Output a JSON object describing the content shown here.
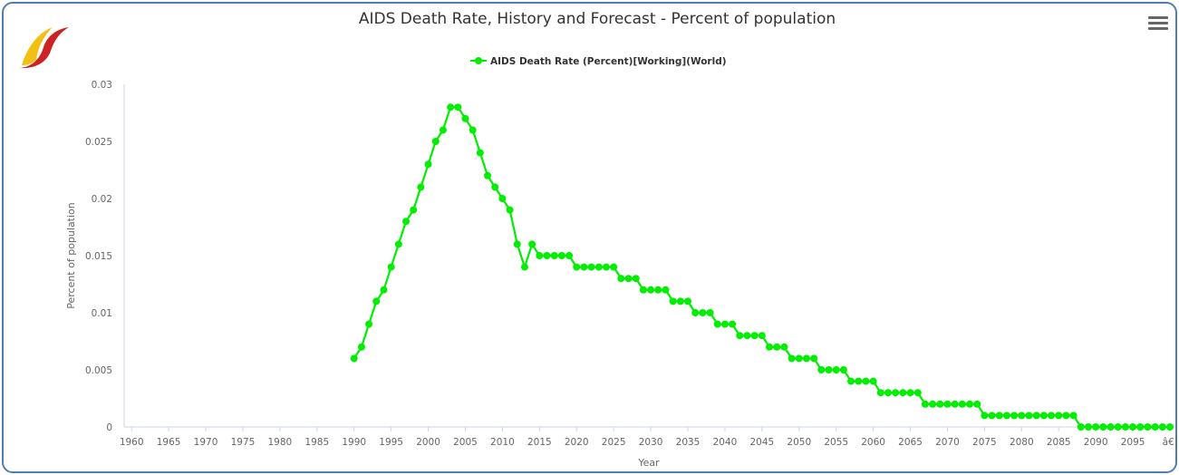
{
  "colors": {
    "series": "#00ee00",
    "frame": "#4f7db3",
    "text": "#333333",
    "axis": "#ccd6eb",
    "logo_red": "#cc2222",
    "logo_yellow": "#f2c012"
  },
  "icons": {
    "logo": "logo-icon",
    "menu": "hamburger-menu-icon"
  },
  "chart_data": {
    "type": "line",
    "title": "AIDS Death Rate, History and Forecast - Percent of population",
    "xlabel": "Year",
    "ylabel": "Percent of population",
    "xlim": [
      1959,
      2100
    ],
    "ylim": [
      0,
      0.03
    ],
    "grid": false,
    "legend": "top-center",
    "x_tick_labels": [
      "1960",
      "1965",
      "1970",
      "1975",
      "1980",
      "1985",
      "1990",
      "1995",
      "2000",
      "2005",
      "2010",
      "2015",
      "2020",
      "2025",
      "2030",
      "2035",
      "2040",
      "2045",
      "2050",
      "2055",
      "2060",
      "2065",
      "2070",
      "2075",
      "2080",
      "2085",
      "2090",
      "2095",
      "â€¦"
    ],
    "y_tick_labels": [
      "0",
      "0.005",
      "0.01",
      "0.015",
      "0.02",
      "0.025",
      "0.03"
    ],
    "series": [
      {
        "name": "AIDS Death Rate (Percent)[Working](World)",
        "x": [
          1990,
          1991,
          1992,
          1993,
          1994,
          1995,
          1996,
          1997,
          1998,
          1999,
          2000,
          2001,
          2002,
          2003,
          2004,
          2005,
          2006,
          2007,
          2008,
          2009,
          2010,
          2011,
          2012,
          2013,
          2014,
          2015,
          2016,
          2017,
          2018,
          2019,
          2020,
          2021,
          2022,
          2023,
          2024,
          2025,
          2026,
          2027,
          2028,
          2029,
          2030,
          2031,
          2032,
          2033,
          2034,
          2035,
          2036,
          2037,
          2038,
          2039,
          2040,
          2041,
          2042,
          2043,
          2044,
          2045,
          2046,
          2047,
          2048,
          2049,
          2050,
          2051,
          2052,
          2053,
          2054,
          2055,
          2056,
          2057,
          2058,
          2059,
          2060,
          2061,
          2062,
          2063,
          2064,
          2065,
          2066,
          2067,
          2068,
          2069,
          2070,
          2071,
          2072,
          2073,
          2074,
          2075,
          2076,
          2077,
          2078,
          2079,
          2080,
          2081,
          2082,
          2083,
          2084,
          2085,
          2086,
          2087,
          2088,
          2089,
          2090,
          2091,
          2092,
          2093,
          2094,
          2095,
          2096,
          2097,
          2098,
          2099,
          2100
        ],
        "values": [
          0.006,
          0.007,
          0.009,
          0.011,
          0.012,
          0.014,
          0.016,
          0.018,
          0.019,
          0.021,
          0.023,
          0.025,
          0.026,
          0.028,
          0.028,
          0.027,
          0.026,
          0.024,
          0.022,
          0.021,
          0.02,
          0.019,
          0.016,
          0.014,
          0.016,
          0.015,
          0.015,
          0.015,
          0.015,
          0.015,
          0.014,
          0.014,
          0.014,
          0.014,
          0.014,
          0.014,
          0.013,
          0.013,
          0.013,
          0.012,
          0.012,
          0.012,
          0.012,
          0.011,
          0.011,
          0.011,
          0.01,
          0.01,
          0.01,
          0.009,
          0.009,
          0.009,
          0.008,
          0.008,
          0.008,
          0.008,
          0.007,
          0.007,
          0.007,
          0.006,
          0.006,
          0.006,
          0.006,
          0.005,
          0.005,
          0.005,
          0.005,
          0.004,
          0.004,
          0.004,
          0.004,
          0.003,
          0.003,
          0.003,
          0.003,
          0.003,
          0.003,
          0.002,
          0.002,
          0.002,
          0.002,
          0.002,
          0.002,
          0.002,
          0.002,
          0.001,
          0.001,
          0.001,
          0.001,
          0.001,
          0.001,
          0.001,
          0.001,
          0.001,
          0.001,
          0.001,
          0.001,
          0.001,
          0,
          0,
          0,
          0,
          0,
          0,
          0,
          0,
          0,
          0,
          0,
          0,
          0
        ]
      }
    ]
  }
}
